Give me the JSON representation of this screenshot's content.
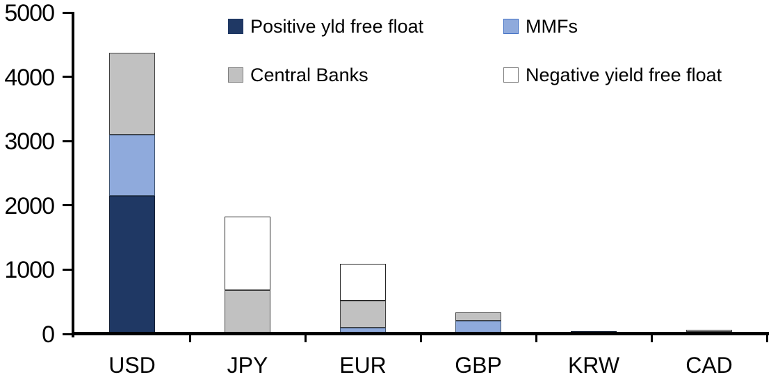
{
  "chart_data": {
    "type": "bar",
    "stacked": true,
    "title": "",
    "xlabel": "",
    "ylabel": "",
    "grid": false,
    "legend_position": "top, two columns inside plot",
    "categories": [
      "USD",
      "JPY",
      "EUR",
      "GBP",
      "KRW",
      "CAD"
    ],
    "series": [
      {
        "name": "Positive yld free float",
        "color": "#1f3864",
        "border_color": "#141f33",
        "swatch_border_color": "#1f3864",
        "values": [
          2150,
          0,
          0,
          0,
          40,
          35
        ]
      },
      {
        "name": "MMFs",
        "color": "#8faadc",
        "border_color": "#40546e",
        "swatch_border_color": "#4472c4",
        "values": [
          945,
          0,
          100,
          210,
          0,
          0
        ]
      },
      {
        "name": "Central Banks",
        "color": "#c1c1c1",
        "border_color": "#404040",
        "swatch_border_color": "#7f7f7f",
        "values": [
          1280,
          685,
          420,
          120,
          0,
          25
        ]
      },
      {
        "name": "Negative yield free float",
        "color": "#ffffff",
        "border_color": "#262626",
        "swatch_border_color": "#7f7f7f",
        "values": [
          0,
          1145,
          575,
          0,
          0,
          0
        ]
      }
    ],
    "ylim": [
      0,
      5000
    ],
    "yticks": [
      0,
      1000,
      2000,
      3000,
      4000,
      5000
    ]
  },
  "colors": {
    "axis": "#000000",
    "background": "#ffffff",
    "text": "#000000"
  }
}
